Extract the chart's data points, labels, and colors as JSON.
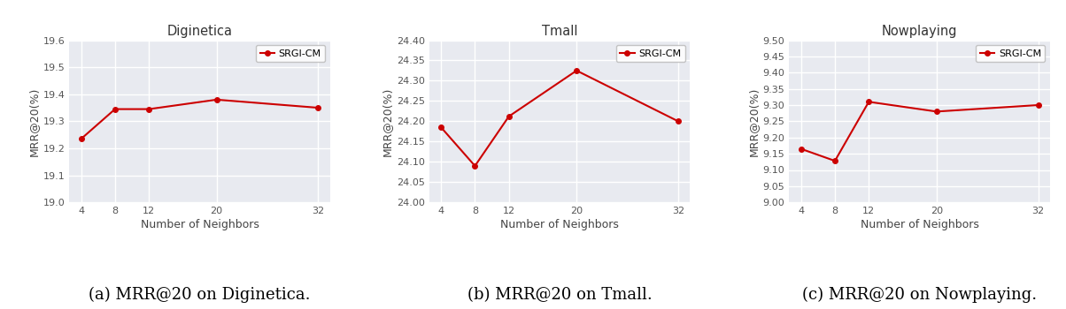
{
  "x": [
    4,
    8,
    12,
    20,
    32
  ],
  "datasets": [
    {
      "title": "Diginetica",
      "caption": "(a) MRR@20 on Diginetica.",
      "ylabel": "MRR@20(%)",
      "xlabel": "Number of Neighbors",
      "values": [
        19.235,
        19.345,
        19.345,
        19.38,
        19.35
      ],
      "ylim": [
        19.0,
        19.6
      ],
      "yticks": [
        19.0,
        19.1,
        19.2,
        19.3,
        19.4,
        19.5,
        19.6
      ],
      "yticklabels": [
        "19.0",
        "19.1",
        "19.2",
        "19.3",
        "19.4",
        "19.5",
        "19.6"
      ]
    },
    {
      "title": "Tmall",
      "caption": "(b) MRR@20 on Tmall.",
      "ylabel": "MRR@20(%)",
      "xlabel": "Number of Neighbors",
      "values": [
        24.185,
        24.09,
        24.212,
        24.325,
        24.2
      ],
      "ylim": [
        24.0,
        24.4
      ],
      "yticks": [
        24.0,
        24.05,
        24.1,
        24.15,
        24.2,
        24.25,
        24.3,
        24.35,
        24.4
      ],
      "yticklabels": [
        "24.00",
        "24.05",
        "24.10",
        "24.15",
        "24.20",
        "24.25",
        "24.30",
        "24.35",
        "24.40"
      ]
    },
    {
      "title": "Nowplaying",
      "caption": "(c) MRR@20 on Nowplaying.",
      "ylabel": "MRR@20(%)",
      "xlabel": "Number of Neighbors",
      "values": [
        9.165,
        9.128,
        9.31,
        9.28,
        9.3
      ],
      "ylim": [
        9.0,
        9.5
      ],
      "yticks": [
        9.0,
        9.05,
        9.1,
        9.15,
        9.2,
        9.25,
        9.3,
        9.35,
        9.4,
        9.45,
        9.5
      ],
      "yticklabels": [
        "9.00",
        "9.05",
        "9.10",
        "9.15",
        "9.20",
        "9.25",
        "9.30",
        "9.35",
        "9.40",
        "9.45",
        "9.50"
      ]
    }
  ],
  "line_color": "#cc0000",
  "marker": "o",
  "marker_size": 4,
  "line_width": 1.5,
  "legend_label": "SRGI-CM",
  "bg_color": "#e8eaf0",
  "grid_color": "#ffffff",
  "caption_fontsize": 13,
  "title_fontsize": 10.5,
  "tick_fontsize": 8,
  "label_fontsize": 9
}
